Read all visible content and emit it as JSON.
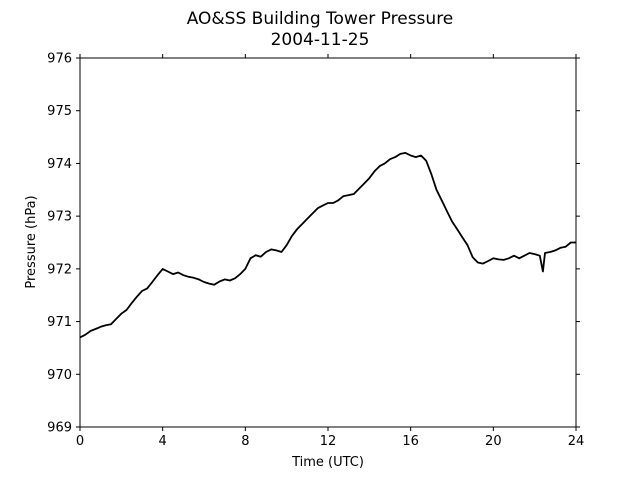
{
  "chart_data": {
    "type": "line",
    "title": "AO&SS Building Tower Pressure",
    "subtitle": "2004-11-25",
    "xlabel": "Time (UTC)",
    "ylabel": "Pressure (hPa)",
    "xlim": [
      0,
      24
    ],
    "ylim": [
      969,
      976
    ],
    "xticks": [
      0,
      4,
      8,
      12,
      16,
      20,
      24
    ],
    "yticks": [
      969,
      970,
      971,
      972,
      973,
      974,
      975,
      976
    ],
    "grid": false,
    "line_color": "#000000",
    "series": [
      {
        "x": [
          0.0,
          0.25,
          0.5,
          0.75,
          1.0,
          1.25,
          1.5,
          1.75,
          2.0,
          2.25,
          2.5,
          2.75,
          3.0,
          3.25,
          3.5,
          3.75,
          4.0,
          4.25,
          4.5,
          4.75,
          5.0,
          5.25,
          5.5,
          5.75,
          6.0,
          6.25,
          6.5,
          6.75,
          7.0,
          7.25,
          7.5,
          7.75,
          8.0,
          8.25,
          8.5,
          8.75,
          9.0,
          9.25,
          9.5,
          9.75,
          10.0,
          10.25,
          10.5,
          10.75,
          11.0,
          11.25,
          11.5,
          11.75,
          12.0,
          12.25,
          12.5,
          12.75,
          13.0,
          13.25,
          13.5,
          13.75,
          14.0,
          14.25,
          14.5,
          14.75,
          15.0,
          15.25,
          15.5,
          15.75,
          16.0,
          16.25,
          16.5,
          16.75,
          17.0,
          17.25,
          17.5,
          17.75,
          18.0,
          18.25,
          18.5,
          18.75,
          19.0,
          19.25,
          19.5,
          19.75,
          20.0,
          20.25,
          20.5,
          20.75,
          21.0,
          21.25,
          21.5,
          21.75,
          22.0,
          22.25,
          22.4,
          22.5,
          22.75,
          23.0,
          23.25,
          23.5,
          23.75,
          24.0
        ],
        "y": [
          970.7,
          970.75,
          970.82,
          970.86,
          970.9,
          970.93,
          970.95,
          971.05,
          971.15,
          971.22,
          971.35,
          971.47,
          971.58,
          971.63,
          971.75,
          971.88,
          972.0,
          971.95,
          971.9,
          971.93,
          971.88,
          971.85,
          971.83,
          971.8,
          971.75,
          971.72,
          971.7,
          971.76,
          971.8,
          971.78,
          971.82,
          971.9,
          972.0,
          972.2,
          972.26,
          972.23,
          972.32,
          972.37,
          972.35,
          972.32,
          972.45,
          972.62,
          972.75,
          972.85,
          972.95,
          973.05,
          973.15,
          973.2,
          973.25,
          973.25,
          973.3,
          973.38,
          973.4,
          973.42,
          973.52,
          973.62,
          973.72,
          973.85,
          973.95,
          974.0,
          974.08,
          974.12,
          974.18,
          974.2,
          974.15,
          974.12,
          974.15,
          974.05,
          973.8,
          973.5,
          973.3,
          973.1,
          972.9,
          972.75,
          972.6,
          972.45,
          972.22,
          972.12,
          972.1,
          972.15,
          972.2,
          972.18,
          972.17,
          972.2,
          972.25,
          972.2,
          972.25,
          972.3,
          972.28,
          972.25,
          971.95,
          972.3,
          972.32,
          972.35,
          972.4,
          972.42,
          972.5,
          972.5
        ]
      }
    ]
  }
}
